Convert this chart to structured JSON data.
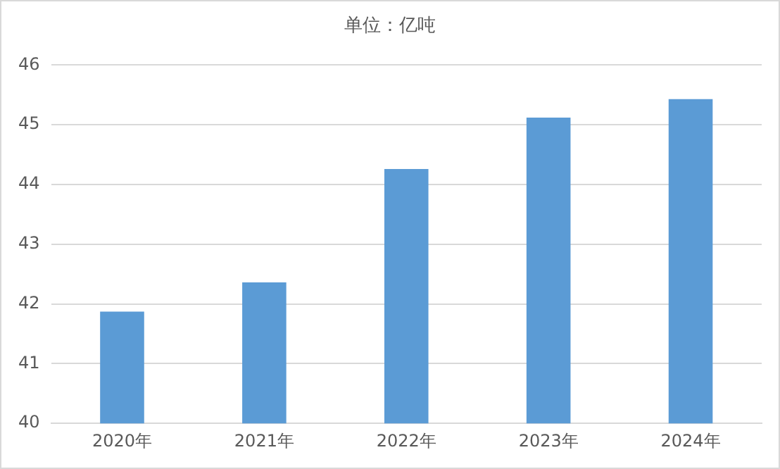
{
  "chart_data": {
    "type": "bar",
    "title": "单位：亿吨",
    "categories": [
      "2020年",
      "2021年",
      "2022年",
      "2023年",
      "2024年"
    ],
    "values": [
      41.87,
      42.36,
      44.26,
      45.12,
      45.43
    ],
    "color": "#5b9bd5",
    "ylim": [
      40,
      46
    ],
    "yticks": [
      40,
      41,
      42,
      43,
      44,
      45,
      46
    ],
    "grid": "y"
  }
}
